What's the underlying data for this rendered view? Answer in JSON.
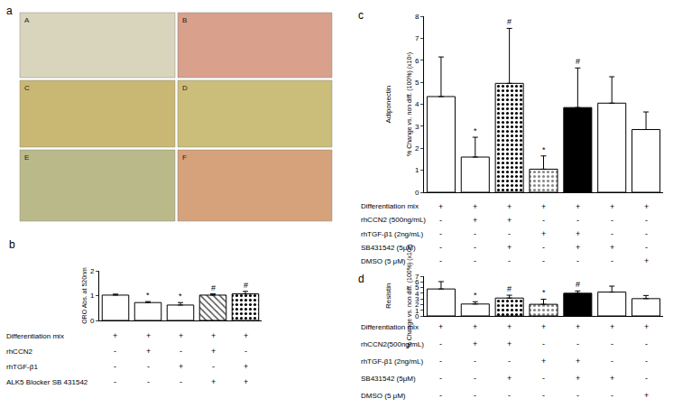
{
  "images": {
    "panel": "a",
    "labels": [
      "A",
      "B",
      "C",
      "D",
      "E",
      "F"
    ]
  },
  "chart_data": [
    {
      "panel": "b",
      "type": "bar",
      "ylabel": "ORO Abs. at 520nm",
      "categories": [
        null,
        null,
        null,
        null,
        null
      ],
      "values": [
        1.02,
        0.72,
        0.62,
        1.02,
        1.07
      ],
      "errors": [
        0.04,
        0.04,
        0.1,
        0.05,
        0.1
      ],
      "significance": [
        null,
        "*",
        "*",
        "#",
        "#"
      ],
      "colors": [
        "#ffffff",
        "#ffffff",
        "#ffffff",
        "#555555",
        "#000000"
      ],
      "ylim": [
        0,
        2
      ],
      "yticks": [
        0,
        1,
        2
      ],
      "grid": false,
      "tick_labels": "y",
      "treatments": [
        {
          "label": "Differentiation mix",
          "signs": [
            "+",
            "+",
            "+",
            "+",
            "+"
          ]
        },
        {
          "label": "rhCCN2",
          "signs": [
            "-",
            "+",
            "-",
            "+",
            "-"
          ]
        },
        {
          "label": "rhTGF-β1",
          "signs": [
            "-",
            "-",
            "+",
            "-",
            "+"
          ]
        },
        {
          "label": "ALK5 Blocker SB 431542",
          "signs": [
            "-",
            "-",
            "-",
            "+",
            "+"
          ]
        }
      ]
    },
    {
      "panel": "c",
      "type": "bar",
      "title": "Adiponectin",
      "ylabel": "% Change vs. non diff. (100%) (x10³)",
      "categories": [
        null,
        null,
        null,
        null,
        null,
        null,
        null
      ],
      "values": [
        4.35,
        1.6,
        4.95,
        1.05,
        3.85,
        4.05,
        2.85
      ],
      "errors": [
        1.8,
        0.9,
        2.5,
        0.6,
        1.8,
        1.2,
        0.8
      ],
      "significance": [
        null,
        "*",
        "#",
        "*",
        "#",
        null,
        null
      ],
      "colors": [
        "#ffffff",
        "#ffffff",
        "#000000",
        "#888888",
        "#000000",
        "#ffffff",
        "#ffffff"
      ],
      "ylim": [
        0,
        8
      ],
      "yticks": [
        0,
        1,
        2,
        3,
        4,
        5,
        6,
        7,
        8
      ],
      "grid": false,
      "tick_labels": "y",
      "treatments": [
        {
          "label": "Differentiation mix",
          "signs": [
            "+",
            "+",
            "+",
            "+",
            "+",
            "+",
            "+"
          ]
        },
        {
          "label": "rhCCN2 (500ng/mL)",
          "signs": [
            "-",
            "+",
            "+",
            "-",
            "-",
            "-",
            "-"
          ]
        },
        {
          "label": "rhTGF-β1 (2ng/mL)",
          "signs": [
            "-",
            "-",
            "-",
            "+",
            "+",
            "-",
            "-"
          ]
        },
        {
          "label": "SB431542 (5μM)",
          "signs": [
            "-",
            "-",
            "+",
            "-",
            "+",
            "+",
            "-"
          ]
        },
        {
          "label": "DMSO (5 μM)",
          "signs": [
            "-",
            "-",
            "-",
            "-",
            "-",
            "-",
            "+"
          ]
        }
      ]
    },
    {
      "panel": "d",
      "type": "bar",
      "title": "Resistin",
      "ylabel": "% Change vs. non diff. (100%) (x10³)",
      "categories": [
        null,
        null,
        null,
        null,
        null,
        null,
        null
      ],
      "values": [
        4.75,
        2.1,
        3.15,
        2.05,
        4.0,
        4.2,
        3.05
      ],
      "errors": [
        1.3,
        0.4,
        0.5,
        0.9,
        0.4,
        1.05,
        0.55
      ],
      "significance": [
        null,
        "*",
        "#",
        "*",
        "#",
        null,
        null
      ],
      "colors": [
        "#ffffff",
        "#ffffff",
        "#000000",
        "#888888",
        "#000000",
        "#ffffff",
        "#ffffff"
      ],
      "ylim": [
        0,
        7
      ],
      "yticks": [
        0,
        1,
        2,
        3,
        4,
        5,
        6,
        7
      ],
      "grid": false,
      "tick_labels": "y",
      "treatments": [
        {
          "label": "Differentiation mix",
          "signs": [
            "+",
            "+",
            "+",
            "+",
            "+",
            "+",
            "+"
          ]
        },
        {
          "label": "rhCCN2(500ng/mL)",
          "signs": [
            "-",
            "+",
            "+",
            "-",
            "-",
            "-",
            "-"
          ]
        },
        {
          "label": "rhTGF-β1 (2ng/mL)",
          "signs": [
            "-",
            "-",
            "-",
            "+",
            "+",
            "-",
            "-"
          ]
        },
        {
          "label": "SB431542 (5μM)",
          "signs": [
            "-",
            "-",
            "+",
            "-",
            "+",
            "+",
            "-"
          ]
        },
        {
          "label": "DMSO (5 μM)",
          "signs": [
            "-",
            "-",
            "-",
            "-",
            "-",
            "-",
            "+"
          ]
        }
      ]
    }
  ]
}
